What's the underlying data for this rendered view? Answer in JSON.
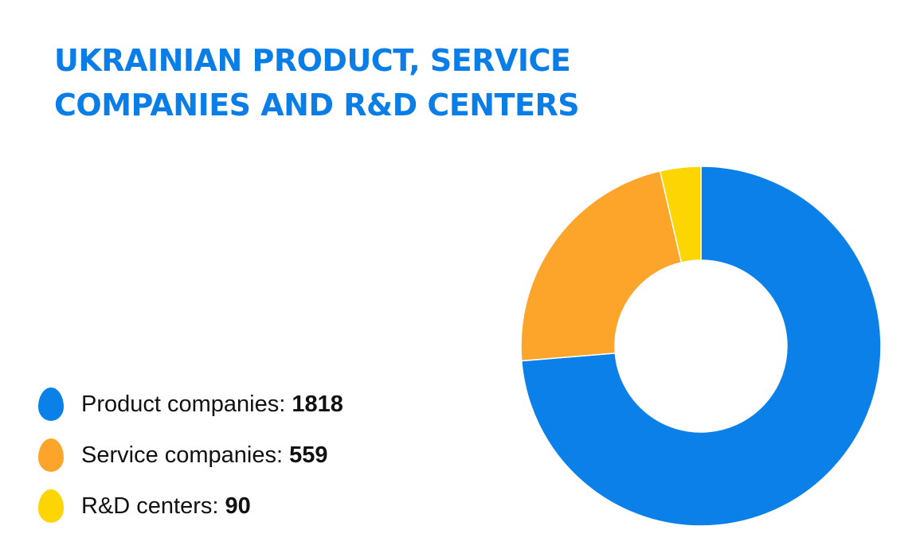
{
  "title_lines": [
    "UKRAINIAN PRODUCT, SERVICE",
    "COMPANIES AND R&D CENTERS"
  ],
  "colors": {
    "title": "#0a7de6",
    "text": "#111111",
    "background": "#ffffff"
  },
  "legend": [
    {
      "label": "Product companies: ",
      "value": "1818",
      "color": "#0a80e8"
    },
    {
      "label": "Service companies: ",
      "value": "559",
      "color": "#fda52b"
    },
    {
      "label": "R&D centers: ",
      "value": "90",
      "color": "#fdd502"
    }
  ],
  "chart_data": {
    "type": "pie",
    "donut": true,
    "categories": [
      "Product companies",
      "Service companies",
      "R&D centers"
    ],
    "values": [
      1818,
      559,
      90
    ],
    "colors": [
      "#0a80e8",
      "#fda52b",
      "#fdd502"
    ],
    "start": "top",
    "direction": "clockwise",
    "legend_position": "bottom-left"
  }
}
